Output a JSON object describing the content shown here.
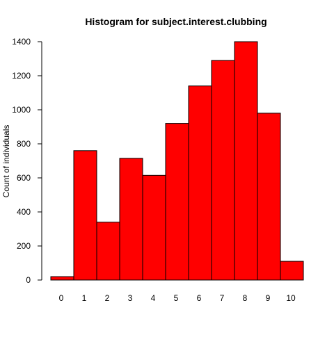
{
  "chart_data": {
    "type": "bar",
    "title": "Histogram for subject.interest.clubbing",
    "xlabel": "",
    "ylabel": "Count of individuals",
    "categories": [
      "0",
      "1",
      "2",
      "3",
      "4",
      "5",
      "6",
      "7",
      "8",
      "9",
      "10"
    ],
    "values": [
      20,
      760,
      340,
      715,
      615,
      920,
      1140,
      1290,
      1400,
      980,
      110
    ],
    "ylim": [
      0,
      1400
    ],
    "yticks": [
      "0",
      "200",
      "400",
      "600",
      "800",
      "1000",
      "1200",
      "1400"
    ],
    "grid": false,
    "legend": "none",
    "bar_color": "#ff0000",
    "bar_edge_color": "#000000"
  }
}
